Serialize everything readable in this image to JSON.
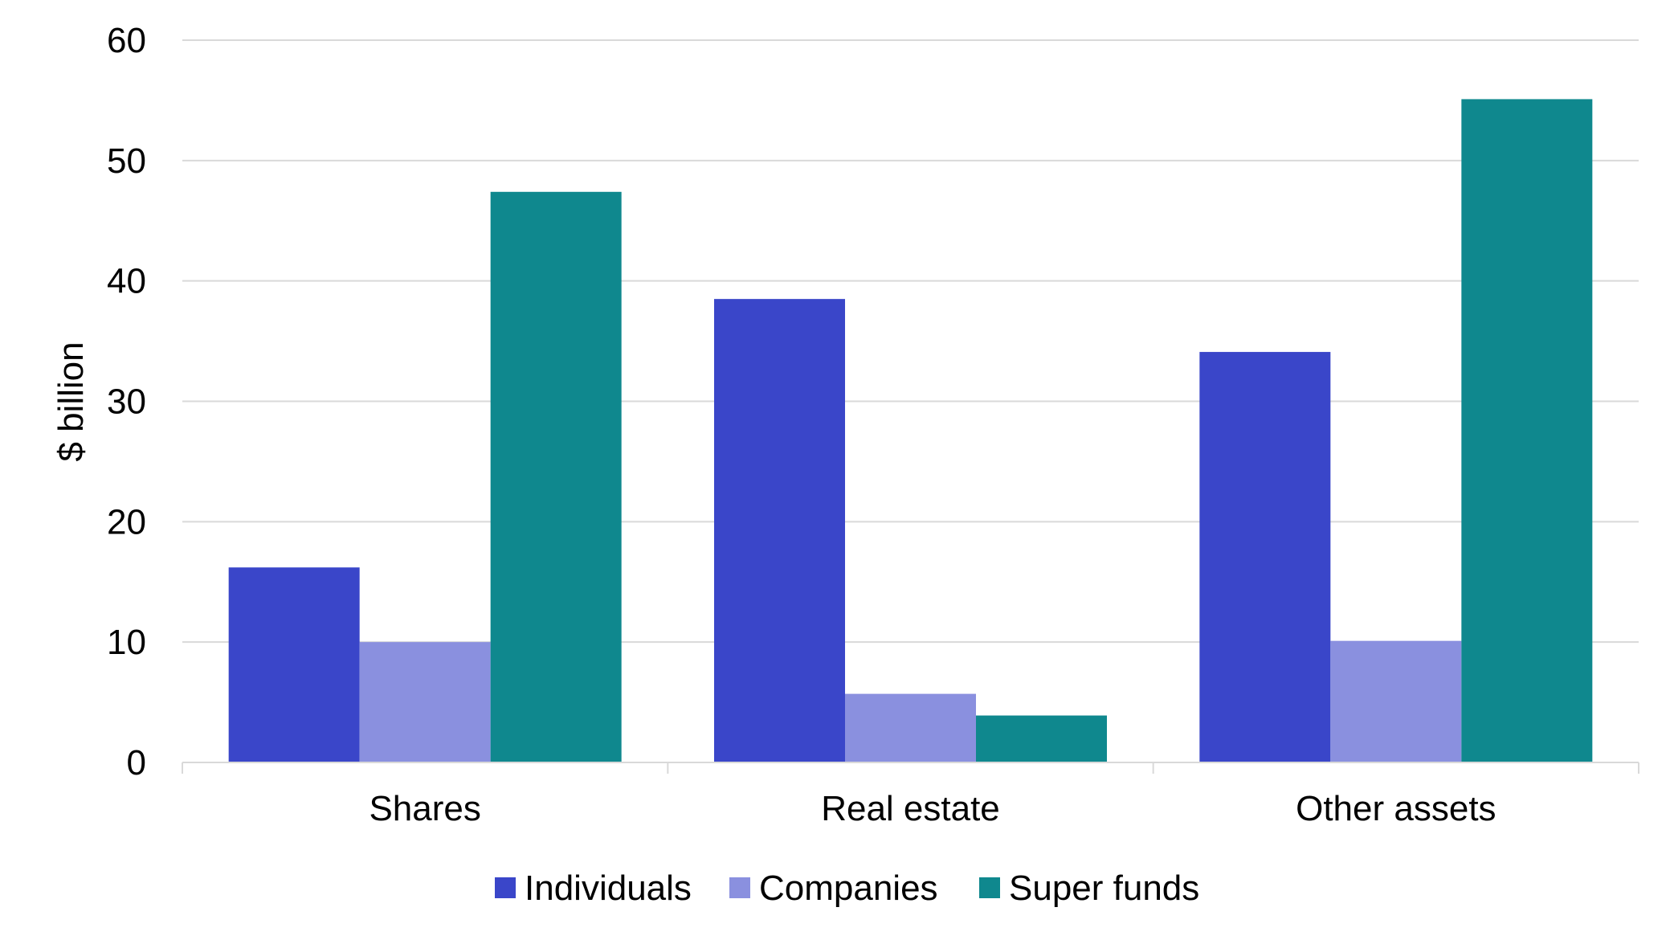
{
  "chart_data": {
    "type": "bar",
    "title": "",
    "xlabel": "",
    "ylabel": "$ billion",
    "ylim": [
      0,
      60
    ],
    "yticks": [
      0,
      10,
      20,
      30,
      40,
      50,
      60
    ],
    "categories": [
      "Shares",
      "Real estate",
      "Other assets"
    ],
    "series": [
      {
        "name": "Individuals",
        "color": "#3a46c9",
        "values": [
          16.2,
          38.5,
          34.1
        ]
      },
      {
        "name": "Companies",
        "color": "#8a90df",
        "values": [
          10.0,
          5.7,
          10.1
        ]
      },
      {
        "name": "Super funds",
        "color": "#0f888e",
        "values": [
          47.4,
          3.9,
          55.1
        ]
      }
    ],
    "grid": true,
    "legend": "bottom"
  }
}
